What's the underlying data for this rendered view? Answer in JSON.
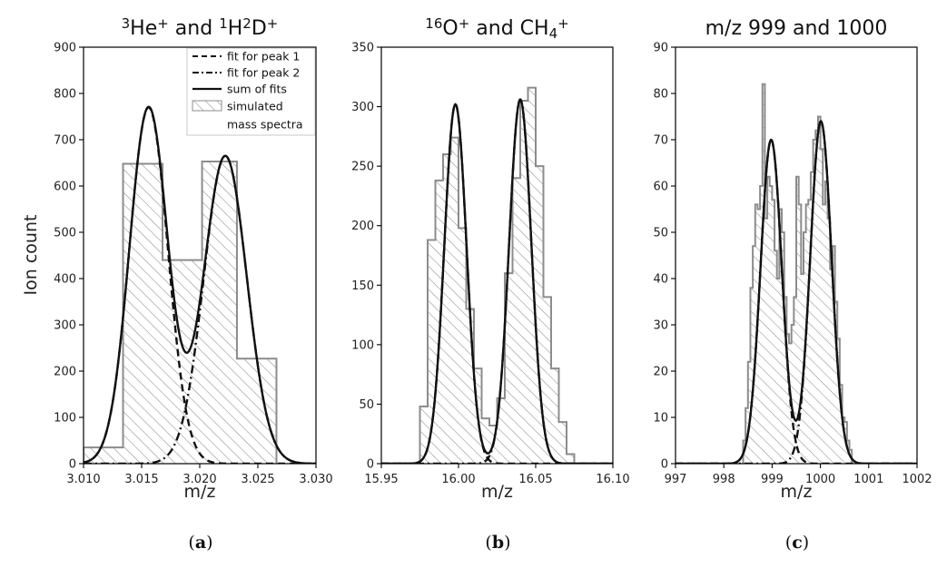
{
  "figure": {
    "ylabel_shared": "Ion count",
    "legend": {
      "placement": "upper-right",
      "entries": [
        {
          "label": "fit for peak 1",
          "style": "dashed"
        },
        {
          "label": "fit for peak 2",
          "style": "dashdot"
        },
        {
          "label": "sum of fits",
          "style": "solid"
        },
        {
          "label": "simulated",
          "style": "hatch"
        },
        {
          "label": "mass spectra",
          "style": "continuation"
        }
      ]
    },
    "colors": {
      "fit": "#111111",
      "hist_edge": "#8c8c8c",
      "hatch": "#8c8c8c"
    }
  },
  "chart_data": [
    {
      "type": "bar",
      "panel_label_pre": "(",
      "panel_label": "a",
      "panel_label_post": ")",
      "title_parts": [
        {
          "t": "3",
          "sup": true
        },
        {
          "t": "He",
          "sup": false
        },
        {
          "t": "+",
          "sup": true
        },
        {
          "t": " and ",
          "sup": false
        },
        {
          "t": "1",
          "sup": true
        },
        {
          "t": "H",
          "sup": false
        },
        {
          "t": "2",
          "sup": true
        },
        {
          "t": "D",
          "sup": false
        },
        {
          "t": "+",
          "sup": true
        }
      ],
      "xlabel": "m/z",
      "ylabel": "Ion count",
      "xlim": [
        3.01,
        3.03
      ],
      "ylim": [
        0,
        900
      ],
      "xticks": [
        3.01,
        3.015,
        3.02,
        3.025,
        3.03
      ],
      "xtick_labels": [
        "3.010",
        "3.015",
        "3.020",
        "3.025",
        "3.030"
      ],
      "yticks": [
        0,
        100,
        200,
        300,
        400,
        500,
        600,
        700,
        800,
        900
      ],
      "ytick_labels": [
        "0",
        "100",
        "200",
        "300",
        "400",
        "500",
        "600",
        "700",
        "800",
        "900"
      ],
      "histogram": {
        "bin_edges": [
          3.01,
          3.0134,
          3.0168,
          3.0202,
          3.0232,
          3.0266
        ],
        "counts": [
          35,
          648,
          440,
          653,
          227
        ]
      },
      "fits": {
        "x_range": [
          3.01,
          3.03
        ],
        "peak1": {
          "amp": 770,
          "center": 3.0156,
          "sigma": 0.00165
        },
        "peak2": {
          "amp": 665,
          "center": 3.0222,
          "sigma": 0.00185
        }
      }
    },
    {
      "type": "bar",
      "panel_label_pre": "(",
      "panel_label": "b",
      "panel_label_post": ")",
      "title_parts": [
        {
          "t": "16",
          "sup": true
        },
        {
          "t": "O",
          "sup": false
        },
        {
          "t": "+",
          "sup": true
        },
        {
          "t": " and CH",
          "sup": false
        },
        {
          "t": "4",
          "sub": true
        },
        {
          "t": "+",
          "sup": true
        }
      ],
      "xlabel": "m/z",
      "ylabel": "",
      "xlim": [
        15.95,
        16.1
      ],
      "ylim": [
        0,
        350
      ],
      "xticks": [
        15.95,
        16.0,
        16.05,
        16.1
      ],
      "xtick_labels": [
        "15.95",
        "16.00",
        "16.05",
        "16.10"
      ],
      "yticks": [
        0,
        50,
        100,
        150,
        200,
        250,
        300,
        350
      ],
      "ytick_labels": [
        "0",
        "50",
        "100",
        "150",
        "200",
        "250",
        "300",
        "350"
      ],
      "histogram": {
        "bin_edges": [
          15.975,
          15.98,
          15.985,
          15.99,
          15.995,
          16.0,
          16.005,
          16.01,
          16.015,
          16.02,
          16.025,
          16.03,
          16.035,
          16.04,
          16.045,
          16.05,
          16.055,
          16.06,
          16.065,
          16.07,
          16.075
        ],
        "counts": [
          48,
          188,
          238,
          260,
          274,
          198,
          130,
          80,
          38,
          32,
          55,
          160,
          240,
          305,
          316,
          250,
          140,
          80,
          35,
          8
        ]
      },
      "fits": {
        "x_range": [
          15.95,
          16.1
        ],
        "peak1": {
          "amp": 302,
          "center": 15.998,
          "sigma": 0.0072
        },
        "peak2": {
          "amp": 306,
          "center": 16.04,
          "sigma": 0.0072
        }
      }
    },
    {
      "type": "bar",
      "panel_label_pre": "(",
      "panel_label": "c",
      "panel_label_post": ")",
      "title_parts": [
        {
          "t": "m/z 999 and 1000",
          "sup": false
        }
      ],
      "xlabel": "m/z",
      "ylabel": "",
      "xlim": [
        997,
        1002
      ],
      "ylim": [
        0,
        90
      ],
      "xticks": [
        997,
        998,
        999,
        1000,
        1001,
        1002
      ],
      "xtick_labels": [
        "997",
        "998",
        "999",
        "1000",
        "1001",
        "1002"
      ],
      "yticks": [
        0,
        10,
        20,
        30,
        40,
        50,
        60,
        70,
        80,
        90
      ],
      "ytick_labels": [
        "0",
        "10",
        "20",
        "30",
        "40",
        "50",
        "60",
        "70",
        "80",
        "90"
      ],
      "histogram": {
        "bin_edges": [
          998.4,
          998.45,
          998.5,
          998.55,
          998.6,
          998.65,
          998.7,
          998.75,
          998.8,
          998.85,
          998.9,
          998.95,
          999.0,
          999.05,
          999.1,
          999.15,
          999.2,
          999.25,
          999.3,
          999.35,
          999.4,
          999.45,
          999.5,
          999.55,
          999.6,
          999.65,
          999.7,
          999.75,
          999.8,
          999.85,
          999.9,
          999.95,
          1000.0,
          1000.05,
          1000.1,
          1000.15,
          1000.2,
          1000.25,
          1000.3,
          1000.35,
          1000.4,
          1000.45,
          1000.5,
          1000.55,
          1000.6,
          1000.65
        ],
        "counts": [
          5,
          12,
          22,
          38,
          47,
          56,
          55,
          60,
          82,
          53,
          62,
          60,
          57,
          46,
          40,
          55,
          50,
          36,
          28,
          26,
          30,
          36,
          62,
          56,
          41,
          50,
          56,
          57,
          63,
          70,
          72,
          75,
          68,
          56,
          61,
          53,
          42,
          47,
          35,
          27,
          17,
          10,
          9,
          5,
          3
        ]
      },
      "fits": {
        "x_range": [
          997,
          1002
        ],
        "peak1": {
          "amp": 70,
          "center": 998.98,
          "sigma": 0.22
        },
        "peak2": {
          "amp": 74,
          "center": 1000.01,
          "sigma": 0.22
        }
      }
    }
  ]
}
